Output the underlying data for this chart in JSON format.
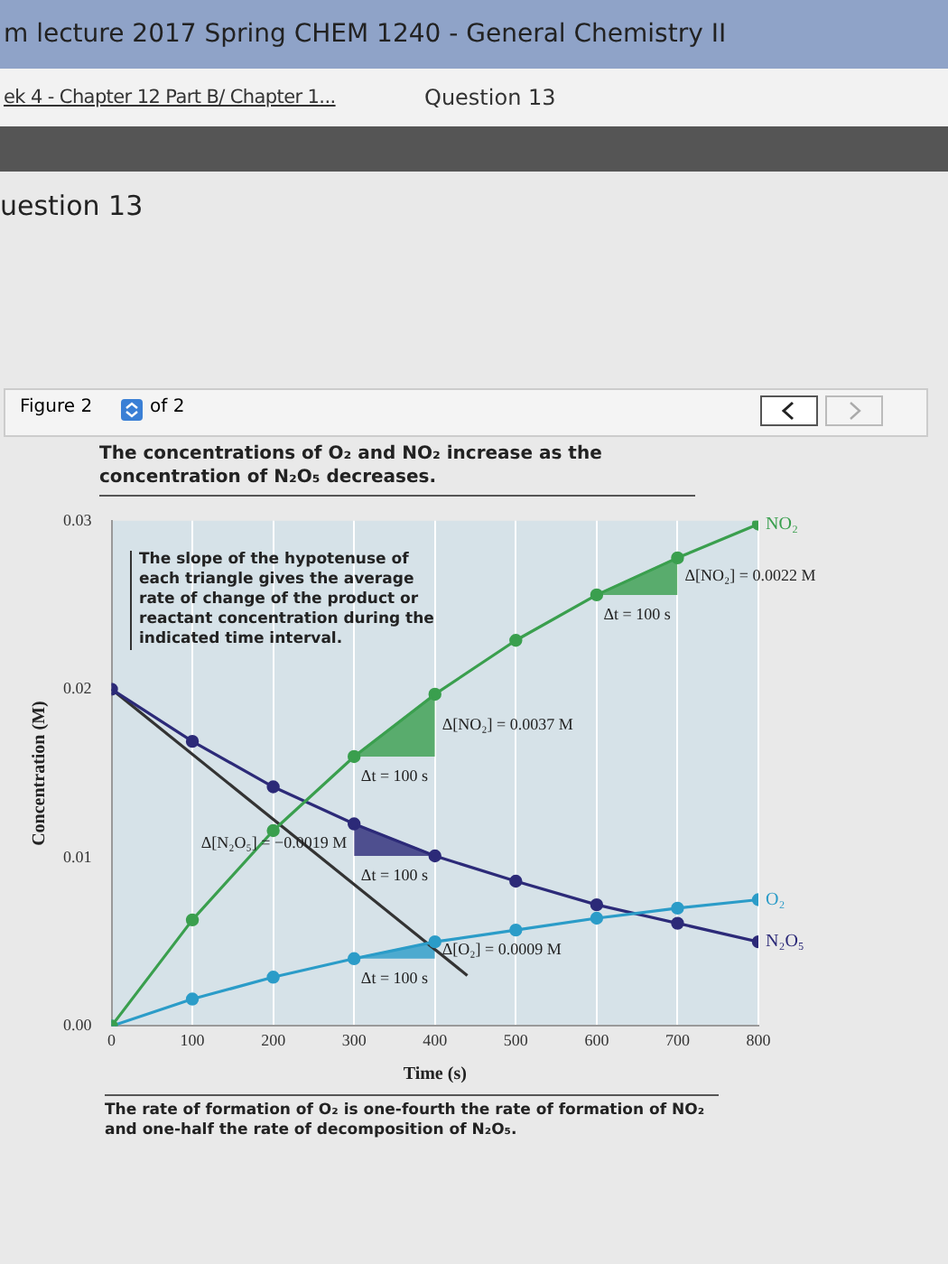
{
  "chart_data": {
    "type": "line",
    "title": "The concentrations of O₂ and NO₂ increase as the concentration of N₂O₅ decreases.",
    "xlabel": "Time (s)",
    "ylabel": "Concentration (M)",
    "x": [
      0,
      100,
      200,
      300,
      400,
      500,
      600,
      700,
      800
    ],
    "series": [
      {
        "name": "NO₂",
        "color": "#3a9f4e",
        "values": [
          0,
          0.0063,
          0.0116,
          0.016,
          0.0197,
          0.0229,
          0.0256,
          0.0278,
          0.0298
        ]
      },
      {
        "name": "O₂",
        "color": "#2b9cc8",
        "values": [
          0,
          0.0016,
          0.0029,
          0.004,
          0.005,
          0.0057,
          0.0064,
          0.007,
          0.0075
        ]
      },
      {
        "name": "N₂O₅",
        "color": "#2c2a78",
        "values": [
          0.02,
          0.0169,
          0.0142,
          0.012,
          0.0101,
          0.0086,
          0.0072,
          0.0061,
          0.005
        ]
      },
      {
        "type": "line",
        "color": "#333333",
        "marker": "none",
        "x": [
          0,
          440
        ],
        "values": [
          0.02,
          0.003
        ]
      },
      {
        "type": "area",
        "color": "#3a9f4e",
        "marker": "none",
        "x": [
          300,
          400
        ],
        "values": [
          0.016,
          0.0197
        ]
      },
      {
        "type": "area",
        "color": "#3a9f4e",
        "marker": "none",
        "x": [
          600,
          700
        ],
        "values": [
          0.0256,
          0.0278
        ]
      },
      {
        "type": "area",
        "color": "#2c2a78",
        "marker": "none",
        "x": [
          300,
          400
        ],
        "values": [
          0.012,
          0.0101
        ]
      },
      {
        "type": "area",
        "color": "#2b9cc8",
        "marker": "none",
        "x": [
          300,
          400
        ],
        "values": [
          0.004,
          0.005
        ]
      }
    ],
    "xlim": [
      0,
      800
    ],
    "xticks": [
      0,
      100,
      200,
      300,
      400,
      500,
      600,
      700,
      800
    ],
    "ylim": [
      0,
      0.03
    ],
    "yticks": [
      {
        "value": 0,
        "label": "0.00"
      },
      0.01,
      0.02,
      0.03
    ],
    "grid": "x",
    "legend": false,
    "marker": "circle",
    "annotations": [
      "m lecture 2017 Spring CHEM 1240 - General Chemistry II",
      "ek 4 - Chapter 12 Part B/ Chapter 1...",
      "Question 13",
      "uestion 13",
      "Figure 2",
      "of 2",
      "The slope of the hypotenuse of each triangle gives the average rate of change of the product or reactant concentration during the indicated time interval.",
      "The rate of formation of O₂ is one-fourth the rate of formation of NO₂ and one-half the rate of decomposition of N₂O₅.",
      {
        "text": "Δ[NO₂] = 0.0022 M",
        "x": 700,
        "y": 0.0278
      },
      {
        "text": "Δt = 100 s",
        "x": 600,
        "y": 0.0256
      },
      {
        "text": "Δ[NO₂] = 0.0037 M",
        "x": 400,
        "y": 0.0197
      },
      {
        "text": "Δt = 100 s",
        "x": 300,
        "y": 0.016
      },
      {
        "text": "Δ[N₂O₅] = −0.0019 M",
        "x": 300,
        "y": 0.012
      },
      {
        "text": "Δt = 100 s",
        "x": 400,
        "y": 0.0101
      },
      {
        "text": "Δ[O₂] = 0.0009 M",
        "x": 400,
        "y": 0.005
      },
      {
        "text": "Δt = 100 s",
        "x": 300,
        "y": 0.004
      }
    ]
  }
}
